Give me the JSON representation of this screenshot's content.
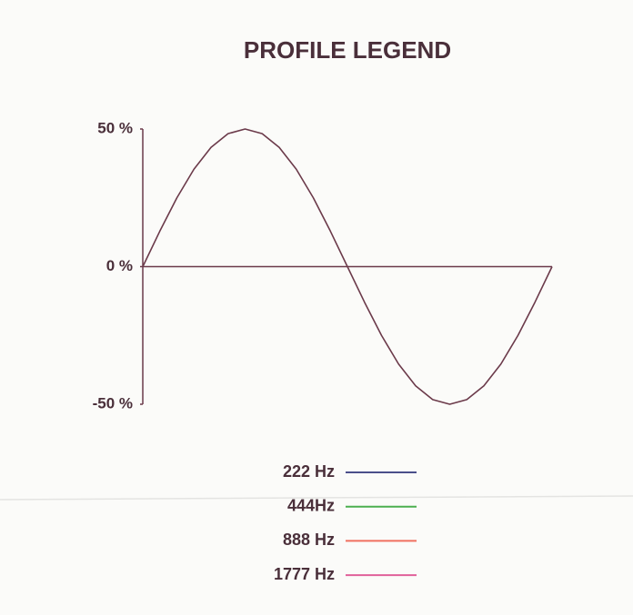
{
  "chart_data": {
    "type": "line",
    "title": "PROFILE LEGEND",
    "ylim": [
      -50,
      50
    ],
    "yticks": [
      {
        "value": 50,
        "label": "50 %"
      },
      {
        "value": 0,
        "label": "0 %"
      },
      {
        "value": -50,
        "label": "-50 %"
      }
    ],
    "series": [
      {
        "color": "#6b3a4a",
        "values": [
          0,
          12.9,
          25,
          35.4,
          43.3,
          48.3,
          50,
          48.3,
          43.3,
          35.4,
          25,
          12.9,
          0,
          -12.9,
          -25,
          -35.4,
          -43.3,
          -48.3,
          -50,
          -48.3,
          -43.3,
          -35.4,
          -25,
          -12.9,
          0
        ]
      }
    ],
    "legend": [
      {
        "label": "222 Hz",
        "color": "#4a4f8a"
      },
      {
        "label": "444Hz",
        "color": "#4caf50"
      },
      {
        "label": "888 Hz",
        "color": "#f07060"
      },
      {
        "label": "1777 Hz",
        "color": "#e0609a"
      }
    ]
  }
}
